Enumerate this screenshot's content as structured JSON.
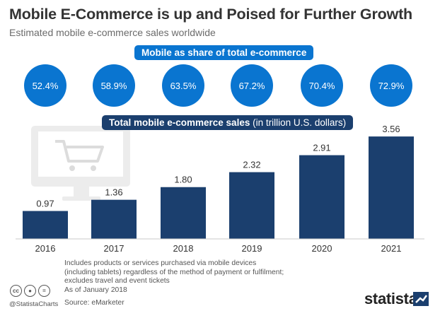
{
  "title": "Mobile E-Commerce is up and Poised for Further Growth",
  "subtitle": "Estimated mobile e-commerce sales worldwide",
  "share_heading": "Mobile as share of total e-commerce",
  "total_heading_bold": "Total mobile e-commerce sales",
  "total_heading_rest": " (in trillion U.S. dollars)",
  "chart_data": [
    {
      "type": "bar",
      "categories": [
        "2016",
        "2017",
        "2018",
        "2019",
        "2020",
        "2021"
      ],
      "values": [
        0.97,
        1.36,
        1.8,
        2.32,
        2.91,
        3.56
      ],
      "value_labels": [
        "0.97",
        "1.36",
        "1.80",
        "2.32",
        "2.91",
        "3.56"
      ],
      "title": "Total mobile e-commerce sales (in trillion U.S. dollars)",
      "bar_color": "#1b3f6e",
      "grid": false
    },
    {
      "type": "bubble-row",
      "categories": [
        "2016",
        "2017",
        "2018",
        "2019",
        "2020",
        "2021"
      ],
      "values": [
        52.4,
        58.9,
        63.5,
        67.2,
        70.4,
        72.9
      ],
      "value_labels": [
        "52.4%",
        "58.9%",
        "63.5%",
        "67.2%",
        "70.4%",
        "72.9%"
      ],
      "title": "Mobile as share of total e-commerce",
      "color": "#0a75d0"
    }
  ],
  "notes": [
    "Includes products or services purchased via mobile devices",
    "(including tablets) regardless of the method of payment or fulfilment;",
    "excludes travel and event tickets",
    "As of January 2018"
  ],
  "source": "Source: eMarketer",
  "handle": "@StatistaCharts",
  "brand": "statista",
  "icons": {
    "decor": "shopping-cart-monitor-icon",
    "license": [
      "cc-icon",
      "by-icon",
      "nd-icon"
    ]
  },
  "colors": {
    "accent": "#0a75d0",
    "bar": "#1b3f6e",
    "decor": "#e9e9e9"
  }
}
